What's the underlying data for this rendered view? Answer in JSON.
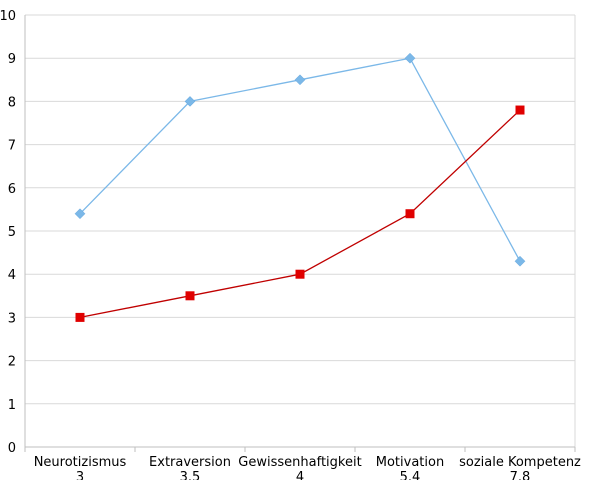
{
  "chart_data": {
    "type": "line",
    "title": "",
    "xlabel": "",
    "ylabel": "",
    "ylim": [
      0,
      10
    ],
    "yticks": [
      "0",
      "1",
      "2",
      "3",
      "4",
      "5",
      "6",
      "7",
      "8",
      "9",
      "10"
    ],
    "categories": [
      [
        "Neurotizismus",
        "3"
      ],
      [
        "Extraversion",
        "3.5"
      ],
      [
        "Gewissenhaftigkeit",
        "4"
      ],
      [
        "Motivation",
        "5.4"
      ],
      [
        "soziale Kompetenz",
        "7.8"
      ]
    ],
    "grid": "horizontal",
    "legend": "none",
    "series": [
      {
        "values": [
          5.4,
          8.0,
          8.5,
          9.0,
          4.3
        ],
        "color": "#7bb8e8",
        "marker": "diamond"
      },
      {
        "values": [
          3.0,
          3.5,
          4.0,
          5.4,
          7.8
        ],
        "color": "#c00000",
        "marker": "square",
        "marker_color": "#e00000"
      }
    ]
  }
}
